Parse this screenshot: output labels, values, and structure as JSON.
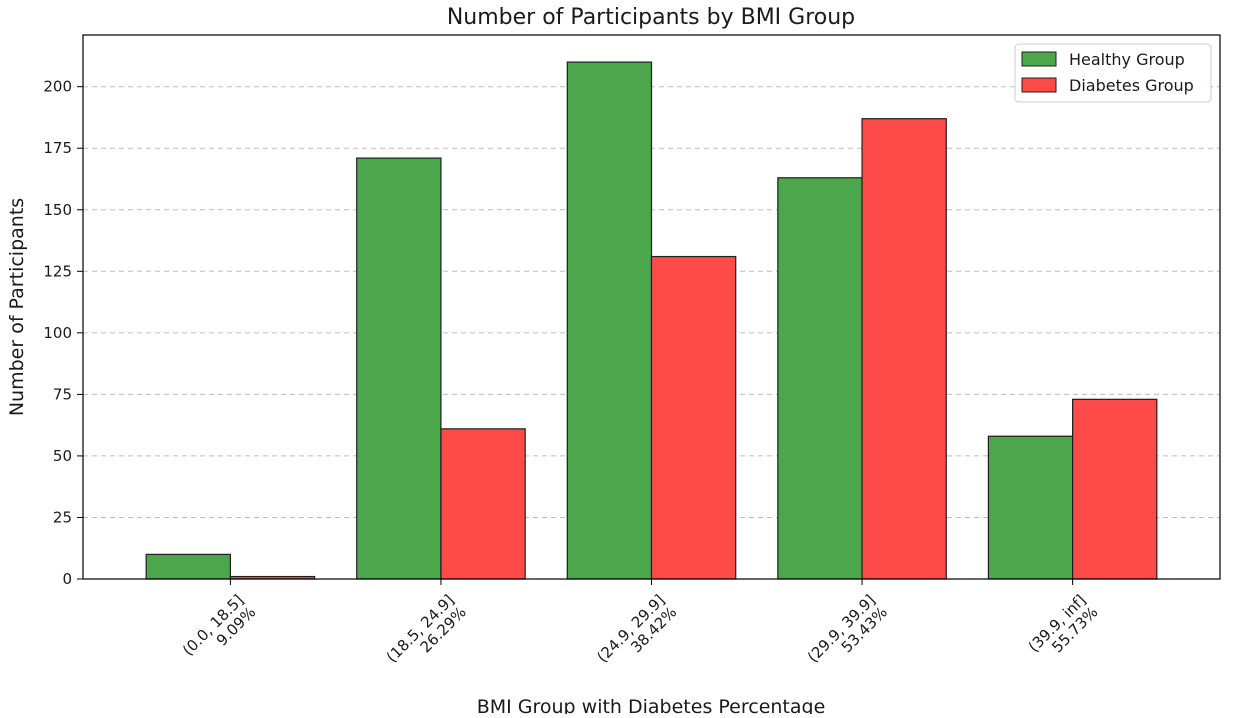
{
  "chart_data": {
    "type": "bar",
    "title": "Number of Participants by BMI Group",
    "xlabel": "BMI Group with Diabetes Percentage",
    "ylabel": "Number of Participants",
    "categories": [
      [
        "(0.0, 18.5]",
        "9.09%"
      ],
      [
        "(18.5, 24.9]",
        "26.29%"
      ],
      [
        "(24.9, 29.9]",
        "38.42%"
      ],
      [
        "(29.9, 39.9]",
        "53.43%"
      ],
      [
        "(39.9, inf]",
        "55.73%"
      ]
    ],
    "series": [
      {
        "name": "Healthy Group",
        "values": [
          10,
          171,
          210,
          163,
          58
        ],
        "color": "#4ca64c"
      },
      {
        "name": "Diabetes Group",
        "values": [
          1,
          61,
          131,
          187,
          73
        ],
        "color": "#ff4a4a"
      }
    ],
    "ylim": [
      0,
      221
    ],
    "yticks": [
      0,
      25,
      50,
      75,
      100,
      125,
      150,
      175,
      200
    ],
    "grid": "y-dashed",
    "legend": "top-right"
  }
}
